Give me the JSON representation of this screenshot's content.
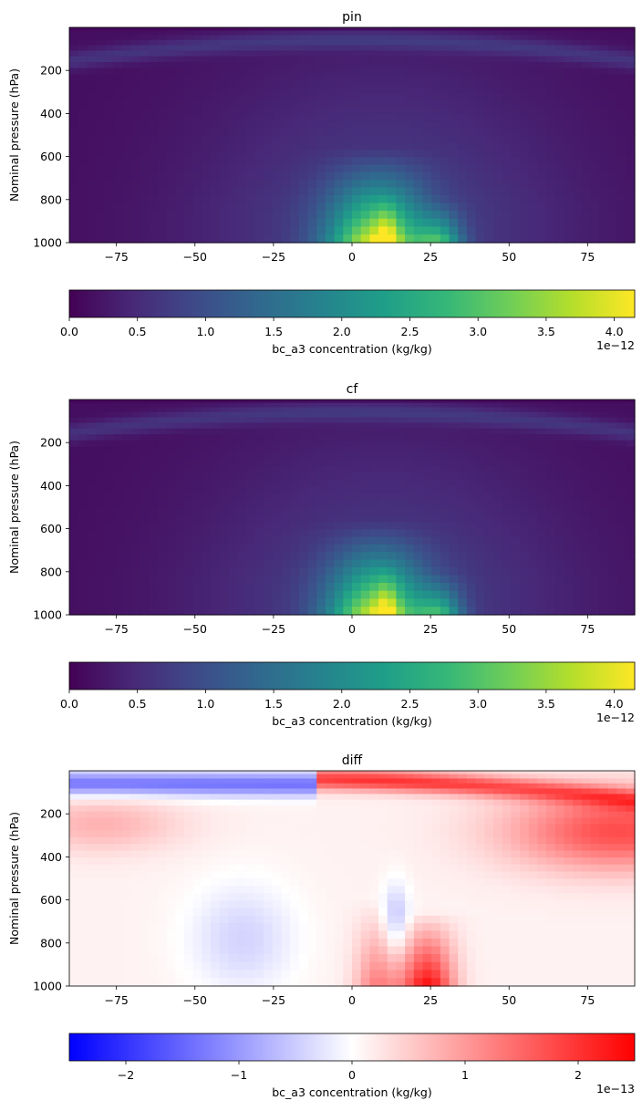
{
  "chart_data": [
    {
      "type": "heatmap",
      "title": "pin",
      "xlabel": "",
      "ylabel": "Nominal pressure (hPa)",
      "xlim": [
        -90,
        90
      ],
      "ylim": [
        1000,
        0
      ],
      "xticks": [
        -75,
        -50,
        -25,
        0,
        25,
        50,
        75
      ],
      "yticks": [
        200,
        400,
        600,
        800,
        1000
      ],
      "colormap": "viridis",
      "value_range": [
        0,
        4.15e-12
      ],
      "hotspot": {
        "lat_range": [
          -5,
          35
        ],
        "pressure_range": [
          750,
          1000
        ],
        "peak_value": 4.15e-12,
        "peak_lat": 10
      },
      "colorbar": {
        "label": "bc_a3 concentration (kg/kg)",
        "ticks": [
          "0.0",
          "0.5",
          "1.0",
          "1.5",
          "2.0",
          "2.5",
          "3.0",
          "3.5",
          "4.0"
        ],
        "tick_values": [
          0,
          0.5,
          1.0,
          1.5,
          2.0,
          2.5,
          3.0,
          3.5,
          4.0
        ],
        "range": [
          0,
          4.15
        ],
        "offset_label": "1e−12",
        "colors": [
          "#440154",
          "#482878",
          "#3e4a89",
          "#31688e",
          "#26828e",
          "#1f9e89",
          "#35b779",
          "#6ece58",
          "#b5de2b",
          "#fde725"
        ]
      }
    },
    {
      "type": "heatmap",
      "title": "cf",
      "xlabel": "",
      "ylabel": "Nominal pressure (hPa)",
      "xlim": [
        -90,
        90
      ],
      "ylim": [
        1000,
        0
      ],
      "xticks": [
        -75,
        -50,
        -25,
        0,
        25,
        50,
        75
      ],
      "yticks": [
        200,
        400,
        600,
        800,
        1000
      ],
      "colormap": "viridis",
      "value_range": [
        0,
        4.15e-12
      ],
      "hotspot": {
        "lat_range": [
          -5,
          35
        ],
        "pressure_range": [
          750,
          1000
        ],
        "peak_value": 4.1e-12,
        "peak_lat": 10
      },
      "colorbar": {
        "label": "bc_a3 concentration (kg/kg)",
        "ticks": [
          "0.0",
          "0.5",
          "1.0",
          "1.5",
          "2.0",
          "2.5",
          "3.0",
          "3.5",
          "4.0"
        ],
        "tick_values": [
          0,
          0.5,
          1.0,
          1.5,
          2.0,
          2.5,
          3.0,
          3.5,
          4.0
        ],
        "range": [
          0,
          4.15
        ],
        "offset_label": "1e−12",
        "colors": [
          "#440154",
          "#482878",
          "#3e4a89",
          "#31688e",
          "#26828e",
          "#1f9e89",
          "#35b779",
          "#6ece58",
          "#b5de2b",
          "#fde725"
        ]
      }
    },
    {
      "type": "heatmap",
      "title": "diff",
      "xlabel": "",
      "ylabel": "Nominal pressure (hPa)",
      "xlim": [
        -90,
        90
      ],
      "ylim": [
        1000,
        0
      ],
      "xticks": [
        -75,
        -50,
        -25,
        0,
        25,
        50,
        75
      ],
      "yticks": [
        200,
        400,
        600,
        800,
        1000
      ],
      "colormap": "bwr",
      "value_range": [
        -2.5e-13,
        2.5e-13
      ],
      "colorbar": {
        "label": "bc_a3 concentration (kg/kg)",
        "ticks": [
          "−2",
          "−1",
          "0",
          "1",
          "2"
        ],
        "tick_values": [
          -2,
          -1,
          0,
          1,
          2
        ],
        "range": [
          -2.5,
          2.5
        ],
        "offset_label": "1e−13",
        "colors": [
          "#0000ff",
          "#ffffff",
          "#ff0000"
        ]
      }
    }
  ]
}
